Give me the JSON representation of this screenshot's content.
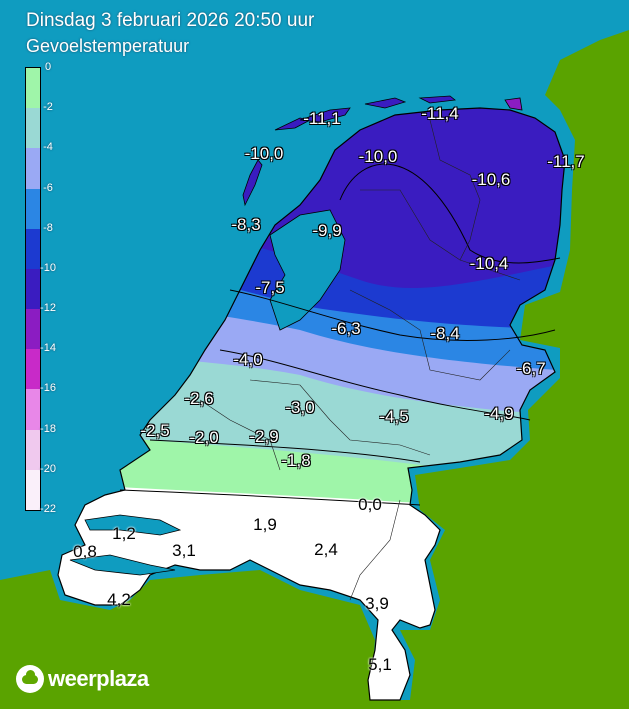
{
  "header": {
    "title": "Dinsdag 3 februari 2026 20:50 uur",
    "subtitle": "Gevoelstemperatuur"
  },
  "colors": {
    "sea": "#0f9cc0",
    "land_border": "#5aa300",
    "outline": "#000000"
  },
  "legend": {
    "ticks": [
      "0",
      "-2",
      "-4",
      "-6",
      "-8",
      "-10",
      "-12",
      "-14",
      "-16",
      "-18",
      "-20",
      "-22"
    ],
    "bands": [
      {
        "from": 0,
        "to": -2,
        "color": "#9ff5a9"
      },
      {
        "from": -2,
        "to": -4,
        "color": "#9ad9d4"
      },
      {
        "from": -4,
        "to": -6,
        "color": "#9aa9f4"
      },
      {
        "from": -6,
        "to": -8,
        "color": "#2b86e4"
      },
      {
        "from": -8,
        "to": -10,
        "color": "#1c3ad0"
      },
      {
        "from": -10,
        "to": -12,
        "color": "#3a1cc0"
      },
      {
        "from": -12,
        "to": -14,
        "color": "#8b1cc2"
      },
      {
        "from": -14,
        "to": -16,
        "color": "#c82ac8"
      },
      {
        "from": -16,
        "to": -18,
        "color": "#e887e8"
      },
      {
        "from": -18,
        "to": -20,
        "color": "#f0c9ee"
      },
      {
        "from": -20,
        "to": -22,
        "color": "#faf0fa"
      }
    ]
  },
  "readings": [
    {
      "id": "vlieland-north",
      "value": "-11,1"
    },
    {
      "id": "schiermonnikoog",
      "value": "-11,4"
    },
    {
      "id": "texel",
      "value": "-10,0"
    },
    {
      "id": "leeuwarden",
      "value": "-10,0"
    },
    {
      "id": "groningen",
      "value": "-10,6"
    },
    {
      "id": "delfzijl",
      "value": "-11,7"
    },
    {
      "id": "den-helder",
      "value": "-8,3"
    },
    {
      "id": "stavoren",
      "value": "-9,9"
    },
    {
      "id": "assen",
      "value": "-10,4"
    },
    {
      "id": "berkhout",
      "value": "-7,5"
    },
    {
      "id": "lelystad",
      "value": "-6,3"
    },
    {
      "id": "hoogeveen",
      "value": "-8,4"
    },
    {
      "id": "amsterdam",
      "value": "-4,0"
    },
    {
      "id": "twenthe",
      "value": "-6,7"
    },
    {
      "id": "schiphol",
      "value": "-2,6"
    },
    {
      "id": "de-bilt",
      "value": "-3,0"
    },
    {
      "id": "deelen",
      "value": "-4,5"
    },
    {
      "id": "hupsel",
      "value": "-4,9"
    },
    {
      "id": "hoek-van-holland",
      "value": "-2,5"
    },
    {
      "id": "rotterdam",
      "value": "-2,0"
    },
    {
      "id": "herwijnen",
      "value": "-2,9"
    },
    {
      "id": "volkel-north",
      "value": "-1,8"
    },
    {
      "id": "arcen",
      "value": "0,0"
    },
    {
      "id": "wilhelminadorp",
      "value": "1,2"
    },
    {
      "id": "gilze-rijen",
      "value": "1,9"
    },
    {
      "id": "vlissingen",
      "value": "0,8"
    },
    {
      "id": "woensdrecht",
      "value": "3,1"
    },
    {
      "id": "eindhoven",
      "value": "2,4"
    },
    {
      "id": "westdorpe",
      "value": "4,2"
    },
    {
      "id": "ell",
      "value": "3,9"
    },
    {
      "id": "maastricht",
      "value": "5,1"
    }
  ],
  "brand": {
    "name": "weerplaza"
  }
}
